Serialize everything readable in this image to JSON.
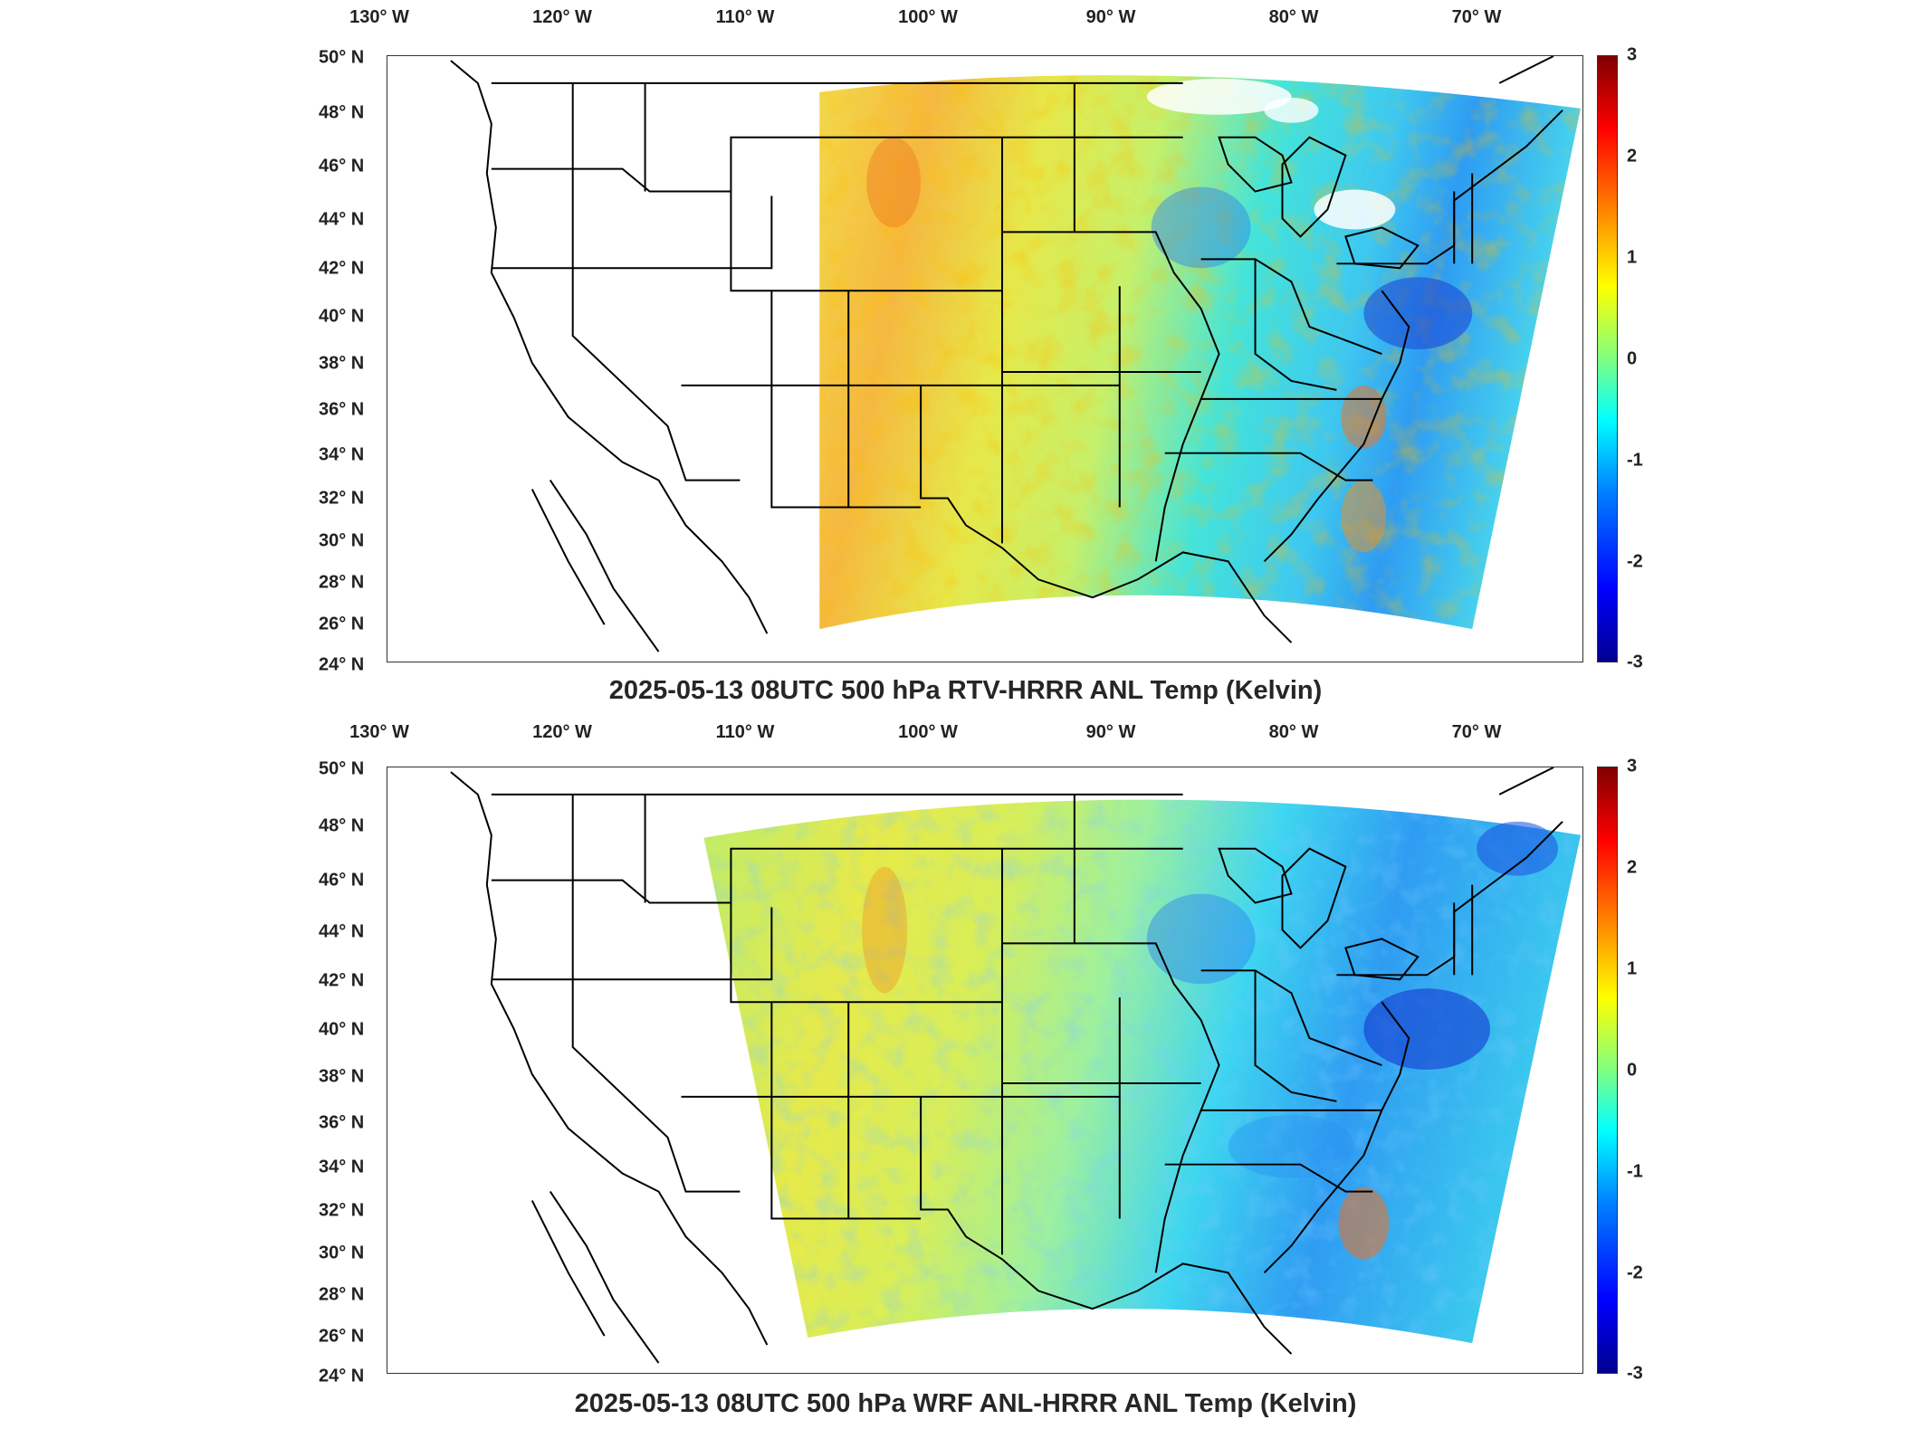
{
  "panels": [
    {
      "title": "2025-05-13 08UTC 500 hPa RTV-HRRR ANL Temp (Kelvin)",
      "lon_ticks": [
        "130° W",
        "120° W",
        "110° W",
        "100° W",
        "90° W",
        "80° W",
        "70° W"
      ],
      "lat_ticks": [
        "50° N",
        "48° N",
        "46° N",
        "44° N",
        "42° N",
        "40° N",
        "38° N",
        "36° N",
        "34° N",
        "32° N",
        "30° N",
        "28° N",
        "26° N",
        "24° N"
      ],
      "colorbar_ticks": [
        "3",
        "2",
        "1",
        "0",
        "-1",
        "-2",
        "-3"
      ]
    },
    {
      "title": "2025-05-13 08UTC 500 hPa WRF ANL-HRRR ANL Temp (Kelvin)",
      "lon_ticks": [
        "130° W",
        "120° W",
        "110° W",
        "100° W",
        "90° W",
        "80° W",
        "70° W"
      ],
      "lat_ticks": [
        "50° N",
        "48° N",
        "46° N",
        "44° N",
        "42° N",
        "40° N",
        "38° N",
        "36° N",
        "34° N",
        "32° N",
        "30° N",
        "28° N",
        "26° N",
        "24° N"
      ],
      "colorbar_ticks": [
        "3",
        "2",
        "1",
        "0",
        "-1",
        "-2",
        "-3"
      ]
    }
  ],
  "colormap": "jet",
  "colorbar_range": [
    -3,
    3
  ]
}
